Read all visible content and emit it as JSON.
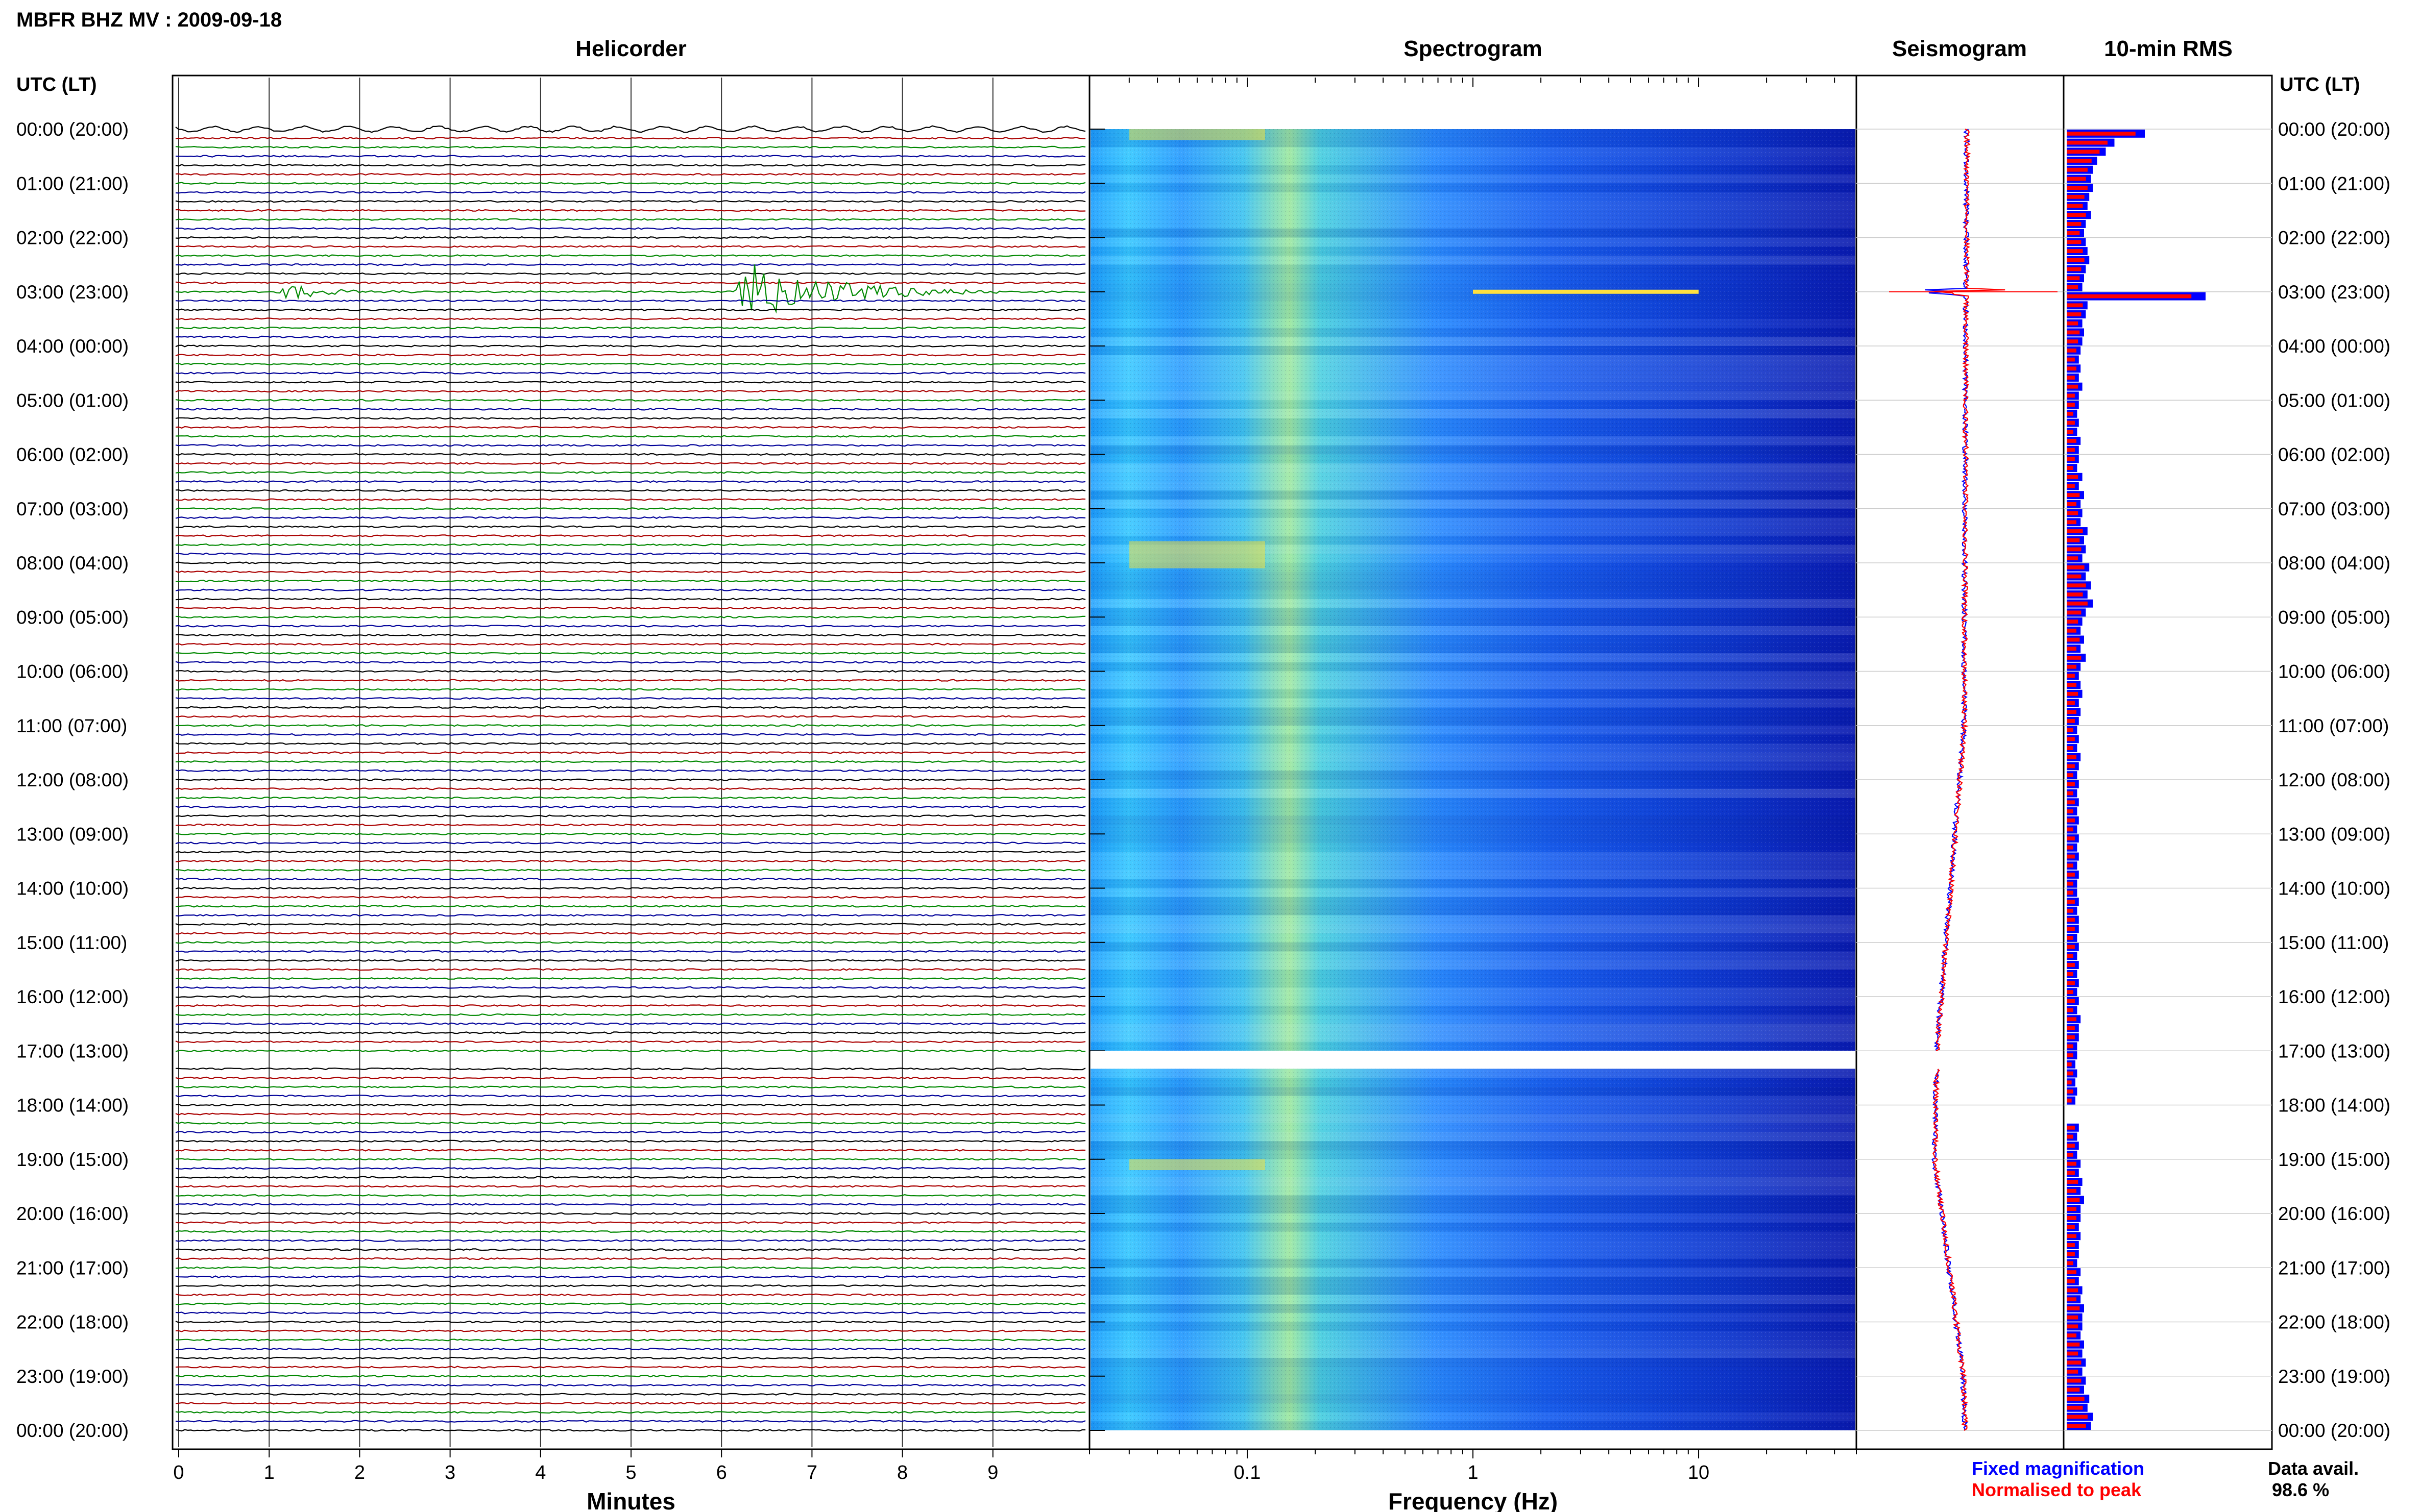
{
  "header": {
    "title": "MBFR BHZ MV : 2009-09-18"
  },
  "time_axis": {
    "label": "UTC (LT)",
    "ticks": [
      "00:00 (20:00)",
      "01:00 (21:00)",
      "02:00 (22:00)",
      "03:00 (23:00)",
      "04:00 (00:00)",
      "05:00 (01:00)",
      "06:00 (02:00)",
      "07:00 (03:00)",
      "08:00 (04:00)",
      "09:00 (05:00)",
      "10:00 (06:00)",
      "11:00 (07:00)",
      "12:00 (08:00)",
      "13:00 (09:00)",
      "14:00 (10:00)",
      "15:00 (11:00)",
      "16:00 (12:00)",
      "17:00 (13:00)",
      "18:00 (14:00)",
      "19:00 (15:00)",
      "20:00 (16:00)",
      "21:00 (17:00)",
      "22:00 (18:00)",
      "23:00 (19:00)",
      "00:00 (20:00)"
    ]
  },
  "panels": {
    "helicorder": "Helicorder",
    "spectrogram": "Spectrogram",
    "seismogram": "Seismogram",
    "rms": "10-min RMS"
  },
  "footer": {
    "legend_fixed": "Fixed magnification",
    "legend_normalised": "Normalised to peak",
    "data_avail_label": "Data avail.",
    "data_avail_value": "98.6 %"
  },
  "colors": {
    "trace_black": "#000000",
    "trace_red": "#aa0000",
    "trace_green": "#008800",
    "trace_blue": "#000099",
    "fixed": "#0000ff",
    "normalised": "#ff0000",
    "grid": "#cccccc"
  },
  "chart_data": [
    {
      "type": "line",
      "title": "Helicorder",
      "xlabel": "Minutes",
      "x_ticks": [
        0,
        1,
        2,
        3,
        4,
        5,
        6,
        7,
        8,
        9
      ],
      "xlim": [
        0,
        10
      ],
      "ylim_hours": [
        0,
        24
      ],
      "lines_per_hour": 6,
      "trace_color_cycle": [
        "black",
        "red",
        "green",
        "blue"
      ],
      "data_gap_hours": [
        17.0,
        17.33
      ],
      "events": [
        {
          "hour": 3.0,
          "start_min": 1.05,
          "duration_min": 1.6,
          "amplitude": 1.5
        },
        {
          "hour": 3.0,
          "start_min": 6.15,
          "duration_min": 3.0,
          "amplitude": 5.0
        }
      ]
    },
    {
      "type": "heatmap",
      "title": "Spectrogram",
      "xlabel": "Frequency (Hz)",
      "x_scale": "log",
      "x_ticks": [
        0.1,
        1,
        10
      ],
      "xlim": [
        0.02,
        50
      ],
      "ylim_hours": [
        0,
        24
      ],
      "colormap": "jet",
      "features": [
        {
          "freq": 0.18,
          "description": "microseism band"
        },
        {
          "hour": 3.0,
          "freq_range": [
            1,
            10
          ],
          "description": "event energy"
        }
      ]
    },
    {
      "type": "line",
      "title": "Seismogram",
      "ylim_hours": [
        0,
        24
      ],
      "series": [
        {
          "name": "Fixed magnification",
          "color": "#0000ff"
        },
        {
          "name": "Normalised to peak",
          "color": "#ff0000"
        }
      ]
    },
    {
      "type": "bar",
      "title": "10-min RMS",
      "ylim_hours": [
        0,
        24
      ],
      "bins_per_hour": 6,
      "peak_hour": 3.0,
      "values_fixed": [
        0.9,
        0.55,
        0.45,
        0.35,
        0.3,
        0.28,
        0.3,
        0.26,
        0.24,
        0.28,
        0.22,
        0.2,
        0.22,
        0.24,
        0.26,
        0.22,
        0.2,
        0.18,
        1.6,
        0.24,
        0.22,
        0.18,
        0.2,
        0.18,
        0.16,
        0.14,
        0.16,
        0.14,
        0.18,
        0.14,
        0.14,
        0.12,
        0.14,
        0.12,
        0.16,
        0.14,
        0.14,
        0.12,
        0.18,
        0.14,
        0.2,
        0.16,
        0.18,
        0.16,
        0.24,
        0.2,
        0.22,
        0.18,
        0.26,
        0.22,
        0.28,
        0.24,
        0.3,
        0.22,
        0.18,
        0.16,
        0.2,
        0.16,
        0.22,
        0.16,
        0.14,
        0.16,
        0.18,
        0.14,
        0.16,
        0.14,
        0.12,
        0.14,
        0.12,
        0.16,
        0.14,
        0.12,
        0.14,
        0.12,
        0.14,
        0.12,
        0.14,
        0.12,
        0.14,
        0.12,
        0.14,
        0.12,
        0.14,
        0.12,
        0.12,
        0.14,
        0.12,
        0.14,
        0.14,
        0.12,
        0.14,
        0.12,
        0.14,
        0.12,
        0.14,
        0.12,
        0.14,
        0.12,
        0.16,
        0.14,
        0.14,
        0.12,
        0.12,
        0.1,
        0.12,
        0.1,
        0.12,
        0.1,
        0.0,
        0.0,
        0.14,
        0.12,
        0.14,
        0.12,
        0.16,
        0.14,
        0.18,
        0.16,
        0.2,
        0.16,
        0.16,
        0.14,
        0.16,
        0.14,
        0.14,
        0.12,
        0.16,
        0.14,
        0.18,
        0.16,
        0.2,
        0.18,
        0.18,
        0.16,
        0.2,
        0.18,
        0.22,
        0.18,
        0.22,
        0.2,
        0.26,
        0.24,
        0.3,
        0.28
      ],
      "values_normalised": [
        0.9,
        0.55,
        0.45,
        0.35,
        0.3,
        0.28,
        0.3,
        0.26,
        0.24,
        0.28,
        0.22,
        0.2,
        0.22,
        0.24,
        0.26,
        0.22,
        0.2,
        0.18,
        1.6,
        0.24,
        0.22,
        0.18,
        0.2,
        0.18,
        0.16,
        0.14,
        0.16,
        0.14,
        0.18,
        0.14,
        0.14,
        0.12,
        0.14,
        0.12,
        0.16,
        0.14,
        0.14,
        0.12,
        0.18,
        0.14,
        0.2,
        0.16,
        0.18,
        0.16,
        0.24,
        0.2,
        0.22,
        0.18,
        0.26,
        0.22,
        0.28,
        0.24,
        0.3,
        0.22,
        0.18,
        0.16,
        0.2,
        0.16,
        0.22,
        0.16,
        0.14,
        0.16,
        0.18,
        0.14,
        0.16,
        0.14,
        0.12,
        0.14,
        0.12,
        0.16,
        0.14,
        0.12,
        0.14,
        0.12,
        0.14,
        0.12,
        0.14,
        0.12,
        0.14,
        0.12,
        0.14,
        0.12,
        0.14,
        0.12,
        0.12,
        0.14,
        0.12,
        0.14,
        0.14,
        0.12,
        0.14,
        0.12,
        0.14,
        0.12,
        0.14,
        0.12,
        0.14,
        0.12,
        0.16,
        0.14,
        0.14,
        0.12,
        0.12,
        0.1,
        0.12,
        0.1,
        0.12,
        0.1,
        0.0,
        0.0,
        0.14,
        0.12,
        0.14,
        0.12,
        0.16,
        0.14,
        0.18,
        0.16,
        0.2,
        0.16,
        0.16,
        0.14,
        0.16,
        0.14,
        0.14,
        0.12,
        0.16,
        0.14,
        0.18,
        0.16,
        0.2,
        0.18,
        0.18,
        0.16,
        0.2,
        0.18,
        0.22,
        0.18,
        0.22,
        0.2,
        0.26,
        0.24,
        0.3,
        0.28
      ]
    }
  ]
}
